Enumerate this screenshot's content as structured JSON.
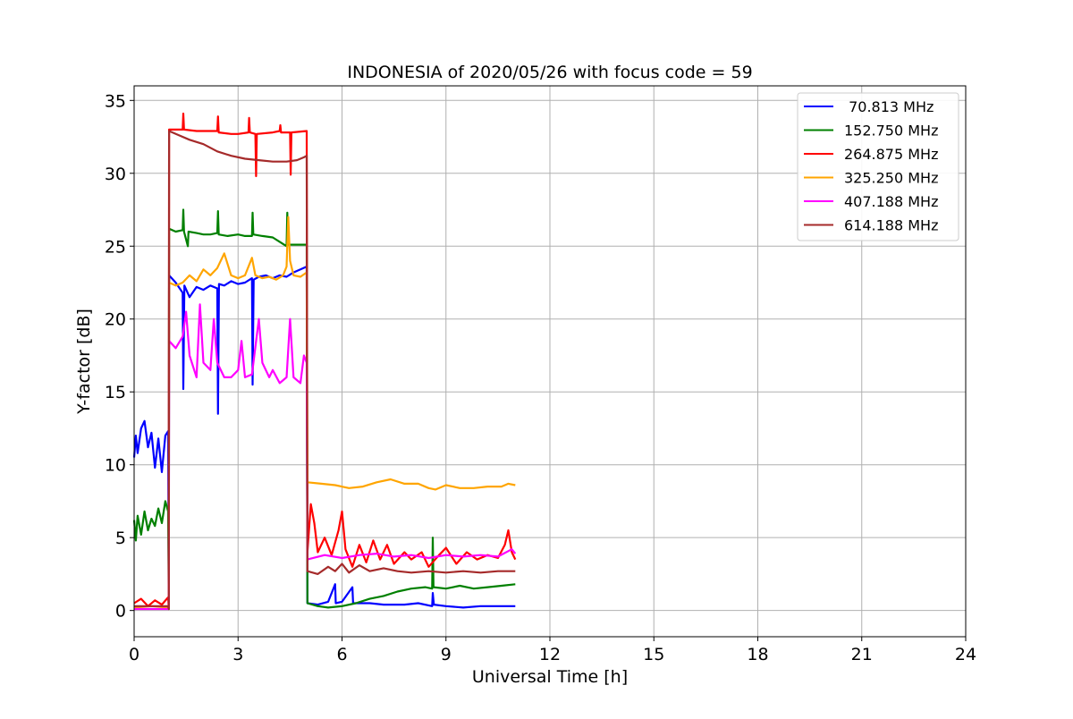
{
  "chart_data": {
    "type": "line",
    "title": "INDONESIA of 2020/05/26 with focus code = 59",
    "xlabel": "Universal Time [h]",
    "ylabel": "Y-factor [dB]",
    "xlim": [
      0,
      24
    ],
    "ylim": [
      -1.8,
      36
    ],
    "xticks": [
      0,
      3,
      6,
      9,
      12,
      15,
      18,
      21,
      24
    ],
    "yticks": [
      0,
      5,
      10,
      15,
      20,
      25,
      30,
      35
    ],
    "grid": true,
    "legend_position": "top-right",
    "series": [
      {
        "name": " 70.813 MHz",
        "color": "#0000ff",
        "points": [
          [
            0,
            10.5
          ],
          [
            0.05,
            12
          ],
          [
            0.1,
            10.8
          ],
          [
            0.2,
            12.5
          ],
          [
            0.3,
            13
          ],
          [
            0.4,
            11.2
          ],
          [
            0.5,
            12.2
          ],
          [
            0.6,
            9.8
          ],
          [
            0.7,
            11.8
          ],
          [
            0.8,
            9.5
          ],
          [
            0.9,
            12
          ],
          [
            0.98,
            12.3
          ],
          [
            1.0,
            0.1
          ],
          [
            1.01,
            23
          ],
          [
            1.2,
            22.5
          ],
          [
            1.4,
            21.8
          ],
          [
            1.42,
            15.2
          ],
          [
            1.45,
            22.3
          ],
          [
            1.6,
            21.5
          ],
          [
            1.8,
            22.2
          ],
          [
            2.0,
            22.0
          ],
          [
            2.2,
            22.3
          ],
          [
            2.4,
            22.1
          ],
          [
            2.42,
            13.5
          ],
          [
            2.45,
            22.4
          ],
          [
            2.6,
            22.3
          ],
          [
            2.8,
            22.6
          ],
          [
            3.0,
            22.4
          ],
          [
            3.2,
            22.5
          ],
          [
            3.4,
            22.8
          ],
          [
            3.42,
            15.5
          ],
          [
            3.45,
            22.7
          ],
          [
            3.6,
            22.9
          ],
          [
            3.8,
            23.0
          ],
          [
            4.0,
            22.8
          ],
          [
            4.2,
            23.0
          ],
          [
            4.4,
            22.9
          ],
          [
            4.6,
            23.2
          ],
          [
            4.8,
            23.4
          ],
          [
            4.98,
            23.6
          ],
          [
            5.0,
            0.5
          ],
          [
            5.3,
            0.4
          ],
          [
            5.6,
            0.6
          ],
          [
            5.8,
            1.8
          ],
          [
            5.82,
            0.5
          ],
          [
            6.0,
            0.6
          ],
          [
            6.3,
            1.6
          ],
          [
            6.32,
            0.5
          ],
          [
            6.8,
            0.5
          ],
          [
            7.2,
            0.4
          ],
          [
            7.8,
            0.4
          ],
          [
            8.2,
            0.5
          ],
          [
            8.6,
            0.3
          ],
          [
            8.62,
            1.2
          ],
          [
            8.65,
            0.4
          ],
          [
            9.0,
            0.3
          ],
          [
            9.5,
            0.2
          ],
          [
            10.0,
            0.3
          ],
          [
            10.5,
            0.3
          ],
          [
            11.0,
            0.3
          ]
        ]
      },
      {
        "name": "152.750 MHz",
        "color": "#008000",
        "points": [
          [
            0,
            6.2
          ],
          [
            0.05,
            4.8
          ],
          [
            0.1,
            6.5
          ],
          [
            0.2,
            5.2
          ],
          [
            0.3,
            6.8
          ],
          [
            0.4,
            5.5
          ],
          [
            0.5,
            6.3
          ],
          [
            0.6,
            5.8
          ],
          [
            0.7,
            7.0
          ],
          [
            0.8,
            6.0
          ],
          [
            0.9,
            7.5
          ],
          [
            0.98,
            6.8
          ],
          [
            1.0,
            0.1
          ],
          [
            1.01,
            26.2
          ],
          [
            1.2,
            26.0
          ],
          [
            1.4,
            26.1
          ],
          [
            1.42,
            27.5
          ],
          [
            1.44,
            26.0
          ],
          [
            1.55,
            25.0
          ],
          [
            1.57,
            26.0
          ],
          [
            1.8,
            25.9
          ],
          [
            2.0,
            25.8
          ],
          [
            2.2,
            25.8
          ],
          [
            2.4,
            25.9
          ],
          [
            2.42,
            27.4
          ],
          [
            2.44,
            25.8
          ],
          [
            2.7,
            25.7
          ],
          [
            3.0,
            25.8
          ],
          [
            3.2,
            25.7
          ],
          [
            3.4,
            25.7
          ],
          [
            3.42,
            27.3
          ],
          [
            3.44,
            25.8
          ],
          [
            3.7,
            25.7
          ],
          [
            4.0,
            25.6
          ],
          [
            4.2,
            25.3
          ],
          [
            4.4,
            25.0
          ],
          [
            4.42,
            27.3
          ],
          [
            4.44,
            25.1
          ],
          [
            4.7,
            25.1
          ],
          [
            4.98,
            25.1
          ],
          [
            5.0,
            0.5
          ],
          [
            5.3,
            0.3
          ],
          [
            5.6,
            0.2
          ],
          [
            6.0,
            0.3
          ],
          [
            6.4,
            0.5
          ],
          [
            6.8,
            0.8
          ],
          [
            7.2,
            1.0
          ],
          [
            7.6,
            1.3
          ],
          [
            8.0,
            1.5
          ],
          [
            8.4,
            1.6
          ],
          [
            8.6,
            1.5
          ],
          [
            8.62,
            5.0
          ],
          [
            8.64,
            1.6
          ],
          [
            9.0,
            1.5
          ],
          [
            9.4,
            1.7
          ],
          [
            9.8,
            1.5
          ],
          [
            10.2,
            1.6
          ],
          [
            10.6,
            1.7
          ],
          [
            11.0,
            1.8
          ]
        ]
      },
      {
        "name": "264.875 MHz",
        "color": "#ff0000",
        "points": [
          [
            0,
            0.5
          ],
          [
            0.2,
            0.8
          ],
          [
            0.4,
            0.3
          ],
          [
            0.6,
            0.7
          ],
          [
            0.8,
            0.4
          ],
          [
            0.98,
            0.9
          ],
          [
            1.0,
            0.1
          ],
          [
            1.01,
            33.0
          ],
          [
            1.3,
            33.0
          ],
          [
            1.4,
            33.0
          ],
          [
            1.42,
            34.1
          ],
          [
            1.44,
            33.0
          ],
          [
            1.8,
            32.9
          ],
          [
            2.0,
            32.9
          ],
          [
            2.4,
            32.9
          ],
          [
            2.42,
            33.9
          ],
          [
            2.44,
            32.8
          ],
          [
            2.8,
            32.7
          ],
          [
            3.0,
            32.7
          ],
          [
            3.3,
            32.8
          ],
          [
            3.32,
            33.8
          ],
          [
            3.34,
            32.8
          ],
          [
            3.5,
            32.7
          ],
          [
            3.52,
            29.8
          ],
          [
            3.54,
            32.7
          ],
          [
            4.0,
            32.8
          ],
          [
            4.2,
            32.9
          ],
          [
            4.22,
            33.3
          ],
          [
            4.24,
            32.8
          ],
          [
            4.5,
            32.8
          ],
          [
            4.52,
            29.9
          ],
          [
            4.54,
            32.8
          ],
          [
            4.98,
            32.9
          ],
          [
            5.0,
            4.0
          ],
          [
            5.1,
            7.3
          ],
          [
            5.2,
            6.0
          ],
          [
            5.3,
            4.0
          ],
          [
            5.5,
            5.0
          ],
          [
            5.7,
            3.8
          ],
          [
            5.9,
            5.5
          ],
          [
            6.0,
            6.8
          ],
          [
            6.1,
            4.2
          ],
          [
            6.3,
            3.0
          ],
          [
            6.5,
            4.5
          ],
          [
            6.7,
            3.3
          ],
          [
            6.9,
            4.8
          ],
          [
            7.1,
            3.5
          ],
          [
            7.3,
            4.5
          ],
          [
            7.5,
            3.2
          ],
          [
            7.8,
            4.0
          ],
          [
            8.0,
            3.5
          ],
          [
            8.3,
            4.0
          ],
          [
            8.5,
            3.0
          ],
          [
            8.8,
            3.8
          ],
          [
            9.0,
            4.3
          ],
          [
            9.3,
            3.2
          ],
          [
            9.6,
            4.0
          ],
          [
            9.9,
            3.5
          ],
          [
            10.2,
            3.8
          ],
          [
            10.5,
            3.6
          ],
          [
            10.7,
            4.5
          ],
          [
            10.8,
            5.5
          ],
          [
            10.9,
            4.0
          ],
          [
            11.0,
            3.5
          ]
        ]
      },
      {
        "name": "325.250 MHz",
        "color": "#ffa500",
        "points": [
          [
            0,
            0.2
          ],
          [
            0.5,
            0.3
          ],
          [
            0.98,
            0.2
          ],
          [
            1.0,
            0.1
          ],
          [
            1.01,
            22.5
          ],
          [
            1.2,
            22.3
          ],
          [
            1.4,
            22.5
          ],
          [
            1.6,
            23.0
          ],
          [
            1.8,
            22.6
          ],
          [
            2.0,
            23.4
          ],
          [
            2.2,
            23.0
          ],
          [
            2.4,
            23.5
          ],
          [
            2.6,
            24.5
          ],
          [
            2.8,
            23.0
          ],
          [
            3.0,
            22.8
          ],
          [
            3.2,
            23.0
          ],
          [
            3.4,
            24.2
          ],
          [
            3.5,
            23.0
          ],
          [
            3.7,
            22.8
          ],
          [
            3.9,
            22.9
          ],
          [
            4.1,
            22.7
          ],
          [
            4.3,
            23.0
          ],
          [
            4.4,
            23.6
          ],
          [
            4.45,
            27.0
          ],
          [
            4.5,
            24.0
          ],
          [
            4.6,
            23.0
          ],
          [
            4.8,
            22.9
          ],
          [
            4.98,
            23.2
          ],
          [
            5.0,
            8.8
          ],
          [
            5.4,
            8.7
          ],
          [
            5.8,
            8.6
          ],
          [
            6.2,
            8.4
          ],
          [
            6.6,
            8.5
          ],
          [
            7.0,
            8.8
          ],
          [
            7.4,
            9.0
          ],
          [
            7.8,
            8.7
          ],
          [
            8.2,
            8.7
          ],
          [
            8.5,
            8.4
          ],
          [
            8.7,
            8.3
          ],
          [
            9.0,
            8.6
          ],
          [
            9.4,
            8.4
          ],
          [
            9.8,
            8.4
          ],
          [
            10.2,
            8.5
          ],
          [
            10.6,
            8.5
          ],
          [
            10.8,
            8.7
          ],
          [
            11.0,
            8.6
          ]
        ]
      },
      {
        "name": "407.188 MHz",
        "color": "#ff00ff",
        "points": [
          [
            0,
            0.1
          ],
          [
            0.98,
            0.1
          ],
          [
            1.0,
            0.1
          ],
          [
            1.01,
            18.5
          ],
          [
            1.2,
            18.0
          ],
          [
            1.4,
            18.8
          ],
          [
            1.5,
            20.5
          ],
          [
            1.6,
            17.5
          ],
          [
            1.8,
            16.0
          ],
          [
            1.9,
            21.0
          ],
          [
            2.0,
            17.0
          ],
          [
            2.2,
            16.5
          ],
          [
            2.3,
            20.0
          ],
          [
            2.4,
            17.0
          ],
          [
            2.6,
            16.0
          ],
          [
            2.8,
            16.0
          ],
          [
            3.0,
            16.5
          ],
          [
            3.1,
            18.5
          ],
          [
            3.2,
            16.0
          ],
          [
            3.4,
            16.2
          ],
          [
            3.6,
            20.0
          ],
          [
            3.7,
            17.0
          ],
          [
            3.9,
            16.0
          ],
          [
            4.0,
            16.5
          ],
          [
            4.2,
            15.6
          ],
          [
            4.4,
            16.0
          ],
          [
            4.5,
            20.0
          ],
          [
            4.6,
            16.0
          ],
          [
            4.8,
            15.6
          ],
          [
            4.9,
            17.5
          ],
          [
            4.98,
            17.0
          ],
          [
            5.0,
            3.5
          ],
          [
            5.5,
            3.8
          ],
          [
            6.0,
            3.6
          ],
          [
            6.5,
            3.8
          ],
          [
            7.0,
            3.9
          ],
          [
            7.5,
            3.7
          ],
          [
            8.0,
            3.8
          ],
          [
            8.5,
            3.6
          ],
          [
            9.0,
            3.8
          ],
          [
            9.5,
            3.7
          ],
          [
            10.0,
            3.8
          ],
          [
            10.5,
            3.7
          ],
          [
            10.9,
            4.2
          ],
          [
            11.0,
            3.9
          ]
        ]
      },
      {
        "name": "614.188 MHz",
        "color": "#a52a2a",
        "points": [
          [
            0,
            0.3
          ],
          [
            0.5,
            0.3
          ],
          [
            0.98,
            0.3
          ],
          [
            1.0,
            0.1
          ],
          [
            1.01,
            32.9
          ],
          [
            1.3,
            32.6
          ],
          [
            1.6,
            32.3
          ],
          [
            2.0,
            32.0
          ],
          [
            2.4,
            31.5
          ],
          [
            2.8,
            31.2
          ],
          [
            3.2,
            31.0
          ],
          [
            3.6,
            30.9
          ],
          [
            4.0,
            30.8
          ],
          [
            4.4,
            30.8
          ],
          [
            4.7,
            30.9
          ],
          [
            4.9,
            31.1
          ],
          [
            4.98,
            31.2
          ],
          [
            5.0,
            2.7
          ],
          [
            5.3,
            2.5
          ],
          [
            5.6,
            3.0
          ],
          [
            5.8,
            2.7
          ],
          [
            6.0,
            3.2
          ],
          [
            6.2,
            2.6
          ],
          [
            6.5,
            3.1
          ],
          [
            6.8,
            2.7
          ],
          [
            7.2,
            2.9
          ],
          [
            7.6,
            2.7
          ],
          [
            8.0,
            2.6
          ],
          [
            8.5,
            2.7
          ],
          [
            9.0,
            2.6
          ],
          [
            9.5,
            2.7
          ],
          [
            10.0,
            2.6
          ],
          [
            10.5,
            2.7
          ],
          [
            11.0,
            2.7
          ]
        ]
      }
    ]
  }
}
